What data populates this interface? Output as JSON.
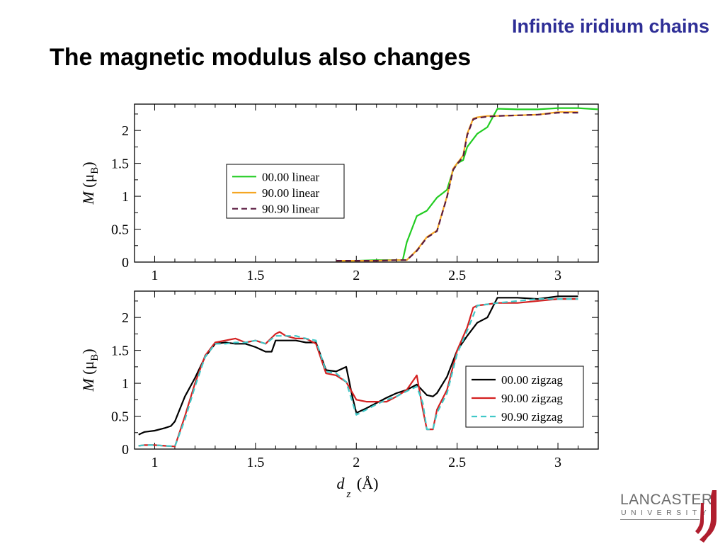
{
  "header": {
    "section_title": "Infinite iridium chains",
    "heading": "The magnetic modulus also changes"
  },
  "logo": {
    "name": "LANCASTER",
    "subtitle": "UNIVERSITY",
    "accent_color": "#b01e2e"
  },
  "chart_data": [
    {
      "type": "line",
      "title": "",
      "xlabel": "",
      "ylabel": "M (μB)",
      "ylabel_parts": {
        "var": "M",
        "open": " (μ",
        "sub": "B",
        "close": ")"
      },
      "xlim": [
        0.9,
        3.2
      ],
      "ylim": [
        0,
        2.4
      ],
      "x_ticks": [
        1,
        1.5,
        2,
        2.5,
        3
      ],
      "x_tick_labels": [
        "1",
        "1.5",
        "2",
        "2.5",
        "3"
      ],
      "y_ticks": [
        0,
        0.5,
        1,
        1.5,
        2
      ],
      "y_tick_labels": [
        "0",
        "0.5",
        "1",
        "1.5",
        "2"
      ],
      "grid": false,
      "legend_position": "center-left",
      "series": [
        {
          "name": "00.00 linear",
          "color": "#22cc22",
          "dash": "solid",
          "x": [
            1.9,
            2.0,
            2.1,
            2.15,
            2.2,
            2.23,
            2.25,
            2.3,
            2.35,
            2.4,
            2.43,
            2.45,
            2.48,
            2.5,
            2.53,
            2.55,
            2.6,
            2.65,
            2.68,
            2.7,
            2.8,
            2.9,
            3.0,
            3.1,
            3.2
          ],
          "y": [
            0.02,
            0.02,
            0.03,
            0.03,
            0.03,
            0.03,
            0.3,
            0.7,
            0.78,
            0.98,
            1.05,
            1.1,
            1.4,
            1.5,
            1.55,
            1.75,
            1.95,
            2.05,
            2.22,
            2.33,
            2.32,
            2.32,
            2.34,
            2.34,
            2.32
          ]
        },
        {
          "name": "90.00 linear",
          "color": "#f5a623",
          "dash": "solid",
          "x": [
            1.9,
            2.0,
            2.1,
            2.2,
            2.25,
            2.3,
            2.35,
            2.4,
            2.45,
            2.48,
            2.5,
            2.53,
            2.55,
            2.58,
            2.6,
            2.65,
            2.7,
            2.8,
            2.9,
            3.0,
            3.1
          ],
          "y": [
            0.02,
            0.02,
            0.02,
            0.03,
            0.03,
            0.18,
            0.38,
            0.48,
            1.0,
            1.42,
            1.5,
            1.62,
            1.95,
            2.18,
            2.2,
            2.22,
            2.22,
            2.23,
            2.24,
            2.28,
            2.28
          ]
        },
        {
          "name": "90.90 linear",
          "color": "#5a1a40",
          "dash": "dashed",
          "x": [
            1.9,
            2.0,
            2.1,
            2.2,
            2.25,
            2.3,
            2.35,
            2.4,
            2.45,
            2.48,
            2.5,
            2.53,
            2.55,
            2.58,
            2.6,
            2.65,
            2.7,
            2.8,
            2.9,
            3.0,
            3.1
          ],
          "y": [
            0.02,
            0.02,
            0.02,
            0.03,
            0.03,
            0.17,
            0.37,
            0.47,
            0.99,
            1.4,
            1.49,
            1.6,
            1.93,
            2.17,
            2.19,
            2.21,
            2.22,
            2.23,
            2.24,
            2.27,
            2.27
          ]
        }
      ]
    },
    {
      "type": "line",
      "title": "",
      "xlabel": "d z (Å)",
      "xlabel_parts": {
        "var": "d",
        "sub": "z",
        "rest": " (Å)"
      },
      "ylabel": "M (μB)",
      "ylabel_parts": {
        "var": "M",
        "open": " (μ",
        "sub": "B",
        "close": ")"
      },
      "xlim": [
        0.9,
        3.2
      ],
      "ylim": [
        0,
        2.4
      ],
      "x_ticks": [
        1,
        1.5,
        2,
        2.5,
        3
      ],
      "x_tick_labels": [
        "1",
        "1.5",
        "2",
        "2.5",
        "3"
      ],
      "y_ticks": [
        0,
        0.5,
        1,
        1.5,
        2
      ],
      "y_tick_labels": [
        "0",
        "0.5",
        "1",
        "1.5",
        "2"
      ],
      "grid": false,
      "legend_position": "bottom-right",
      "series": [
        {
          "name": "00.00 zigzag",
          "color": "#000000",
          "dash": "solid",
          "x": [
            0.92,
            0.95,
            1.0,
            1.05,
            1.08,
            1.1,
            1.15,
            1.2,
            1.25,
            1.3,
            1.35,
            1.4,
            1.45,
            1.5,
            1.55,
            1.58,
            1.6,
            1.65,
            1.7,
            1.75,
            1.8,
            1.85,
            1.9,
            1.95,
            1.98,
            2.0,
            2.05,
            2.1,
            2.15,
            2.2,
            2.25,
            2.3,
            2.35,
            2.38,
            2.4,
            2.45,
            2.5,
            2.55,
            2.6,
            2.65,
            2.7,
            2.8,
            2.9,
            3.0,
            3.1
          ],
          "y": [
            0.22,
            0.26,
            0.28,
            0.32,
            0.35,
            0.42,
            0.8,
            1.08,
            1.4,
            1.6,
            1.62,
            1.6,
            1.6,
            1.55,
            1.48,
            1.48,
            1.65,
            1.65,
            1.65,
            1.62,
            1.62,
            1.2,
            1.18,
            1.25,
            0.8,
            0.55,
            0.62,
            0.7,
            0.78,
            0.85,
            0.9,
            0.98,
            0.82,
            0.8,
            0.85,
            1.1,
            1.5,
            1.72,
            1.92,
            2.0,
            2.3,
            2.3,
            2.28,
            2.32,
            2.32
          ]
        },
        {
          "name": "90.00 zigzag",
          "color": "#d42020",
          "dash": "solid",
          "x": [
            0.92,
            0.95,
            1.0,
            1.05,
            1.1,
            1.15,
            1.2,
            1.25,
            1.3,
            1.35,
            1.4,
            1.45,
            1.5,
            1.55,
            1.6,
            1.62,
            1.65,
            1.7,
            1.75,
            1.8,
            1.85,
            1.9,
            1.95,
            2.0,
            2.05,
            2.1,
            2.15,
            2.2,
            2.25,
            2.3,
            2.33,
            2.35,
            2.38,
            2.4,
            2.45,
            2.5,
            2.55,
            2.58,
            2.6,
            2.65,
            2.7,
            2.8,
            2.9,
            3.0,
            3.1
          ],
          "y": [
            0.05,
            0.06,
            0.06,
            0.05,
            0.04,
            0.5,
            1.0,
            1.42,
            1.62,
            1.65,
            1.68,
            1.62,
            1.65,
            1.6,
            1.75,
            1.78,
            1.72,
            1.68,
            1.68,
            1.6,
            1.15,
            1.12,
            1.02,
            0.75,
            0.72,
            0.72,
            0.72,
            0.8,
            0.9,
            1.12,
            0.6,
            0.3,
            0.3,
            0.6,
            0.9,
            1.5,
            1.85,
            2.15,
            2.18,
            2.2,
            2.22,
            2.22,
            2.25,
            2.28,
            2.28
          ]
        },
        {
          "name": "90.90 zigzag",
          "color": "#40c8c8",
          "dash": "dashed",
          "x": [
            0.92,
            0.95,
            1.0,
            1.05,
            1.1,
            1.15,
            1.2,
            1.25,
            1.3,
            1.35,
            1.4,
            1.45,
            1.5,
            1.55,
            1.6,
            1.65,
            1.7,
            1.75,
            1.8,
            1.85,
            1.9,
            1.95,
            2.0,
            2.05,
            2.1,
            2.15,
            2.2,
            2.25,
            2.3,
            2.33,
            2.35,
            2.38,
            2.4,
            2.45,
            2.5,
            2.55,
            2.6,
            2.65,
            2.7,
            2.8,
            2.9,
            3.0,
            3.1
          ],
          "y": [
            0.05,
            0.06,
            0.06,
            0.05,
            0.04,
            0.45,
            0.95,
            1.4,
            1.6,
            1.6,
            1.62,
            1.62,
            1.65,
            1.6,
            1.72,
            1.72,
            1.72,
            1.68,
            1.65,
            1.18,
            1.15,
            1.02,
            0.52,
            0.6,
            0.68,
            0.75,
            0.8,
            0.88,
            0.95,
            0.7,
            0.3,
            0.3,
            0.55,
            0.85,
            1.45,
            1.8,
            2.18,
            2.2,
            2.22,
            2.25,
            2.28,
            2.28,
            2.28
          ]
        }
      ]
    }
  ]
}
